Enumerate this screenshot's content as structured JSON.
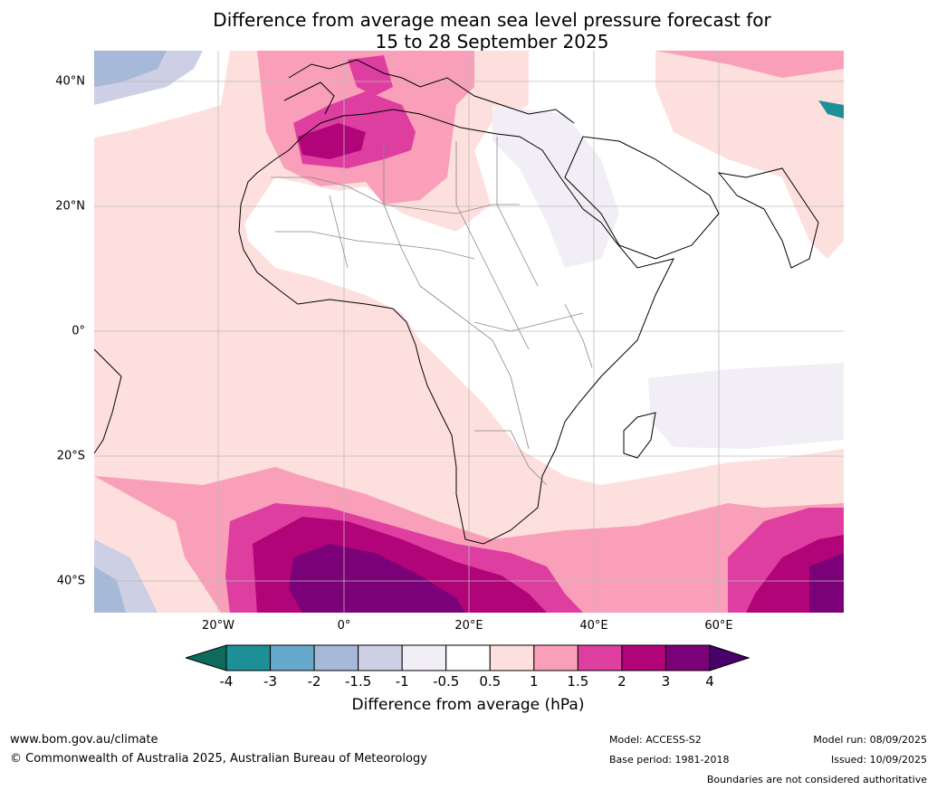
{
  "title": {
    "line1": "Difference from average mean sea level pressure forecast for",
    "line2": "15 to 28 September 2025"
  },
  "map": {
    "lat_labels": [
      "40°N",
      "20°N",
      "0°",
      "20°S",
      "40°S"
    ],
    "lon_labels": [
      "20°W",
      "0°",
      "20°E",
      "40°E",
      "60°E"
    ]
  },
  "colorbar": {
    "title": "Difference from average (hPa)",
    "tick_labels": [
      "-4",
      "-3",
      "-2",
      "-1.5",
      "-1",
      "-0.5",
      "0.5",
      "1",
      "1.5",
      "2",
      "3",
      "4"
    ],
    "colors": {
      "below_min": "#0e6b5b",
      "bins": [
        "#1d8f96",
        "#67a8cd",
        "#a7b9d8",
        "#cdcfe4",
        "#f1eef5",
        "#ffffff",
        "#fde0dd",
        "#f99fb9",
        "#dd3ea0",
        "#b10479",
        "#7a0177"
      ],
      "above_max": "#49006a"
    }
  },
  "footer": {
    "website": "www.bom.gov.au/climate",
    "copyright": "© Commonwealth of Australia 2025, Australian Bureau of Meteorology",
    "model": "Model: ACCESS-S2",
    "base_period": "Base period: 1981-2018",
    "model_run": "Model run: 08/09/2025",
    "issued": "Issued: 10/09/2025",
    "disclaimer": "Boundaries are not considered authoritative"
  }
}
